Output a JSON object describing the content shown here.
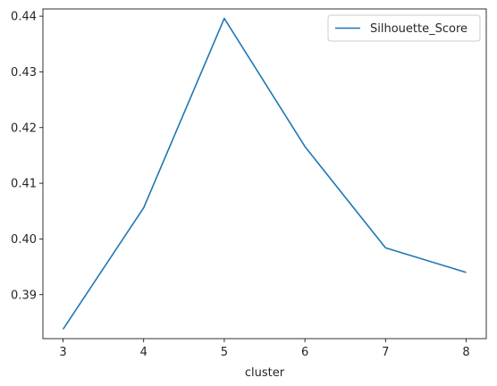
{
  "chart_data": {
    "type": "line",
    "title": "",
    "xlabel": "cluster",
    "ylabel": "",
    "x": [
      3,
      4,
      5,
      6,
      7,
      8
    ],
    "series": [
      {
        "name": "Silhouette_Score",
        "values": [
          0.3838,
          0.4056,
          0.4396,
          0.4166,
          0.3984,
          0.394
        ],
        "color": "#1f77b4"
      }
    ],
    "xlim": [
      2.75,
      8.25
    ],
    "ylim": [
      0.3821,
      0.4413
    ],
    "xticks": [
      3,
      4,
      5,
      6,
      7,
      8
    ],
    "yticks": [
      0.39,
      0.4,
      0.41,
      0.42,
      0.43,
      0.44
    ],
    "ytick_labels": [
      "0.39",
      "0.40",
      "0.41",
      "0.42",
      "0.43",
      "0.44"
    ],
    "grid": false,
    "legend_position": "top-right"
  }
}
